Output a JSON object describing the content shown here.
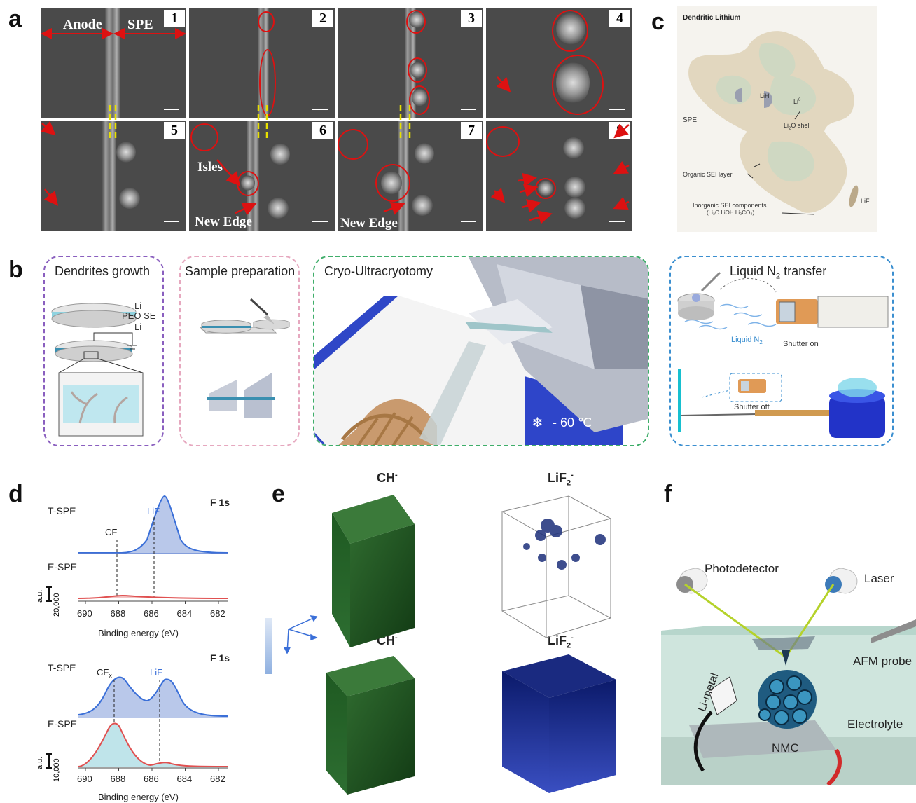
{
  "panel_a": {
    "letter": "a",
    "label_anode": "Anode",
    "label_spe": "SPE",
    "tiles": [
      "1",
      "2",
      "3",
      "4",
      "5",
      "6",
      "7",
      "8"
    ],
    "label_isles": "Isles",
    "label_new_edge_1": "New Edge",
    "label_new_edge_2": "New Edge"
  },
  "panel_b": {
    "letter": "b",
    "box1_title": "Dendrites growth",
    "box1_layer_li_top": "Li",
    "box1_layer_peo": "PEO SE",
    "box1_layer_li_bottom": "Li",
    "box2_title": "Sample preparation",
    "box3_title": "Cryo-Ultracryotomy",
    "box3_temp": "- 60 ℃",
    "box4_title": "Liquid N",
    "box4_title_sub": "2",
    "box4_title_end": " transfer",
    "box4_liquid": "Liquid N",
    "box4_liquid_sub": "2",
    "box4_shutter_on": "Shutter on",
    "box4_shutter_off": "Shutter off"
  },
  "panel_c": {
    "letter": "c",
    "title": "Dendritic Lithium",
    "spe": "SPE",
    "lih": "LiH",
    "li0": "Li",
    "li0_sup": "0",
    "li2o_shell_a": "Li",
    "li2o_shell_sub": "2",
    "li2o_shell_b": "O shell",
    "organic": "Organic SEI layer",
    "inorganic": "Inorganic SEI components",
    "inorganic_sub": "(Li₂O LiOH Li₂CO₃)",
    "lif": "LiF"
  },
  "panel_d": {
    "letter": "d",
    "top": {
      "core": "F 1s",
      "t_spe": "T-SPE",
      "e_spe": "E-SPE",
      "peak_cf": "CF",
      "peak_lif": "LiF",
      "scale": "20,000",
      "au": "a.u.",
      "xticks": [
        "690",
        "688",
        "686",
        "684",
        "682"
      ],
      "xlabel": "Binding energy (eV)"
    },
    "bottom": {
      "core": "F 1s",
      "t_spe": "T-SPE",
      "e_spe": "E-SPE",
      "peak_cf": "CF",
      "peak_cf_sub": "x",
      "peak_lif": "LiF",
      "scale": "10,000",
      "au": "a.u.",
      "xticks": [
        "690",
        "688",
        "686",
        "684",
        "682"
      ],
      "xlabel": "Binding energy (eV)"
    }
  },
  "panel_e": {
    "letter": "e",
    "ch_top": "CH",
    "ch_sup": "-",
    "lif2_top": "LiF",
    "lif2_sub": "2",
    "lif2_sup": "-",
    "ch_bottom": "CH",
    "lif2_bottom": "LiF"
  },
  "panel_f": {
    "letter": "f",
    "photodetector": "Photodetector",
    "laser": "Laser",
    "afm_probe": "AFM probe",
    "li_metal": "Li-metal",
    "electrolyte": "Electrolyte",
    "nmc": "NMC"
  },
  "chart_data": [
    {
      "type": "line",
      "panel": "d-top",
      "title": "F 1s",
      "xlabel": "Binding energy (eV)",
      "xlim": [
        691,
        681
      ],
      "series": [
        {
          "name": "T-SPE",
          "peaks": [
            {
              "label": "LiF",
              "center": 685.3
            }
          ],
          "color": "#3a6fd8"
        },
        {
          "name": "E-SPE",
          "peaks": [
            {
              "label": "CF",
              "center": 687.6
            }
          ],
          "color": "#e05050"
        }
      ]
    },
    {
      "type": "line",
      "panel": "d-bottom",
      "title": "F 1s",
      "xlabel": "Binding energy (eV)",
      "xlim": [
        691,
        681
      ],
      "series": [
        {
          "name": "T-SPE",
          "peaks": [
            {
              "label": "CFx",
              "center": 688.4
            },
            {
              "label": "LiF",
              "center": 685.0
            }
          ],
          "color": "#3a6fd8"
        },
        {
          "name": "E-SPE",
          "peaks": [
            {
              "label": "CFx",
              "center": 688.4
            },
            {
              "label": "LiF",
              "center": 685.0
            }
          ],
          "color": "#e05050"
        }
      ]
    }
  ]
}
